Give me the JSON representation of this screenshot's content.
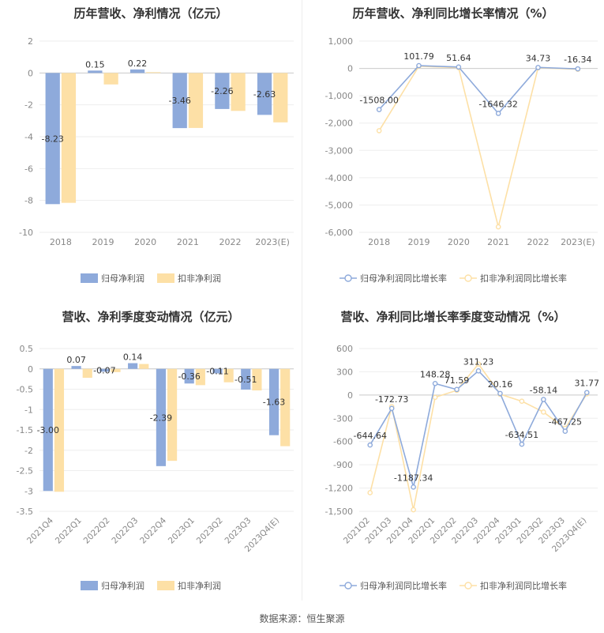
{
  "colors": {
    "blue_bar": "#8eaadb",
    "yellow_bar": "#fde0a6",
    "blue_line": "#8eaadb",
    "yellow_line": "#fde0a6",
    "axis_text": "#888888",
    "grid": "#eeeeee",
    "label_text": "#333333"
  },
  "source_text": "数据来源：恒生聚源",
  "chart_data": [
    {
      "id": "annual-profit",
      "type": "bar",
      "title": "历年营收、净利情况（亿元）",
      "categories": [
        "2018",
        "2019",
        "2020",
        "2021",
        "2022",
        "2023(E)"
      ],
      "series": [
        {
          "name": "归母净利润",
          "values": [
            -8.23,
            0.15,
            0.22,
            -3.46,
            -2.26,
            -2.63
          ],
          "labels": [
            "-8.23",
            "0.15",
            "0.22",
            "-3.46",
            "-2.26",
            "-2.63"
          ]
        },
        {
          "name": "扣非净利润",
          "values": [
            -8.15,
            -0.72,
            0.05,
            -3.45,
            -2.38,
            -3.1
          ],
          "labels": []
        }
      ],
      "ylim": [
        -10,
        2
      ],
      "yticks": [
        2,
        0,
        -2,
        -4,
        -6,
        -8,
        -10
      ],
      "ytick_labels": [
        "2",
        "0",
        "-2",
        "-4",
        "-6",
        "-8",
        "-10"
      ],
      "grid": true,
      "legend": "bottom"
    },
    {
      "id": "annual-growth",
      "type": "line",
      "title": "历年营收、净利同比增长率情况（%）",
      "categories": [
        "2018",
        "2019",
        "2020",
        "2021",
        "2022",
        "2023(E)"
      ],
      "series": [
        {
          "name": "归母净利润同比增长率",
          "values": [
            -1508.0,
            101.79,
            51.64,
            -1646.32,
            34.73,
            -16.34
          ],
          "labels": [
            "-1508.00",
            "101.79",
            "51.64",
            "-1646.32",
            "34.73",
            "-16.34"
          ]
        },
        {
          "name": "扣非净利润同比增长率",
          "values": [
            -2280,
            80,
            30,
            -5800,
            20,
            -30
          ],
          "labels": []
        }
      ],
      "ylim": [
        -6000,
        1000
      ],
      "yticks": [
        1000,
        0,
        -1000,
        -2000,
        -3000,
        -4000,
        -5000,
        -6000
      ],
      "ytick_labels": [
        "1,000",
        "0",
        "-1,000",
        "-2,000",
        "-3,000",
        "-4,000",
        "-5,000",
        "-6,000"
      ],
      "grid": true,
      "legend": "bottom"
    },
    {
      "id": "quarterly-profit",
      "type": "bar",
      "title": "营收、净利季度变动情况（亿元）",
      "categories": [
        "2021Q4",
        "2022Q1",
        "2022Q2",
        "2022Q3",
        "2022Q4",
        "2023Q1",
        "2023Q2",
        "2023Q3",
        "2023Q4(E)"
      ],
      "series": [
        {
          "name": "归母净利润",
          "values": [
            -3.0,
            0.07,
            -0.07,
            0.14,
            -2.39,
            -0.36,
            -0.11,
            -0.51,
            -1.63
          ],
          "labels": [
            "-3.00",
            "0.07",
            "-0.07",
            "0.14",
            "-2.39",
            "-0.36",
            "-0.11",
            "-0.51",
            "-1.63"
          ]
        },
        {
          "name": "扣非净利润",
          "values": [
            -3.02,
            -0.22,
            -0.08,
            0.12,
            -2.26,
            -0.4,
            -0.33,
            -0.53,
            -1.9
          ],
          "labels": []
        }
      ],
      "ylim": [
        -3.5,
        0.5
      ],
      "yticks": [
        0.5,
        0,
        -0.5,
        -1,
        -1.5,
        -2,
        -2.5,
        -3,
        -3.5
      ],
      "ytick_labels": [
        "0.5",
        "0",
        "-0.5",
        "-1",
        "-1.5",
        "-2",
        "-2.5",
        "-3",
        "-3.5"
      ],
      "grid": true,
      "legend": "bottom"
    },
    {
      "id": "quarterly-growth",
      "type": "line",
      "title": "营收、净利同比增长率季度变动情况（%）",
      "categories": [
        "2021Q2",
        "2021Q3",
        "2021Q4",
        "2022Q1",
        "2022Q2",
        "2022Q3",
        "2022Q4",
        "2023Q1",
        "2023Q2",
        "2023Q3",
        "2023Q4(E)"
      ],
      "series": [
        {
          "name": "归母净利润同比增长率",
          "values": [
            -644.64,
            -172.73,
            -1187.34,
            148.28,
            71.59,
            311.23,
            20.16,
            -634.51,
            -58.14,
            -467.25,
            31.77
          ],
          "labels": [
            "-644.64",
            "-172.73",
            "-1187.34",
            "148.28",
            "71.59",
            "311.23",
            "20.16",
            "-634.51",
            "-58.14",
            "-467.25",
            "31.77"
          ]
        },
        {
          "name": "扣非净利润同比增长率",
          "values": [
            -1260,
            -150,
            -1480,
            -30,
            60,
            400,
            10,
            -80,
            -220,
            -430,
            15
          ],
          "labels": []
        }
      ],
      "ylim": [
        -1500,
        600
      ],
      "yticks": [
        600,
        300,
        0,
        -300,
        -600,
        -900,
        -1200,
        -1500
      ],
      "ytick_labels": [
        "600",
        "300",
        "0",
        "-300",
        "-600",
        "-900",
        "-1,200",
        "-1,500"
      ],
      "grid": true,
      "legend": "bottom"
    }
  ]
}
